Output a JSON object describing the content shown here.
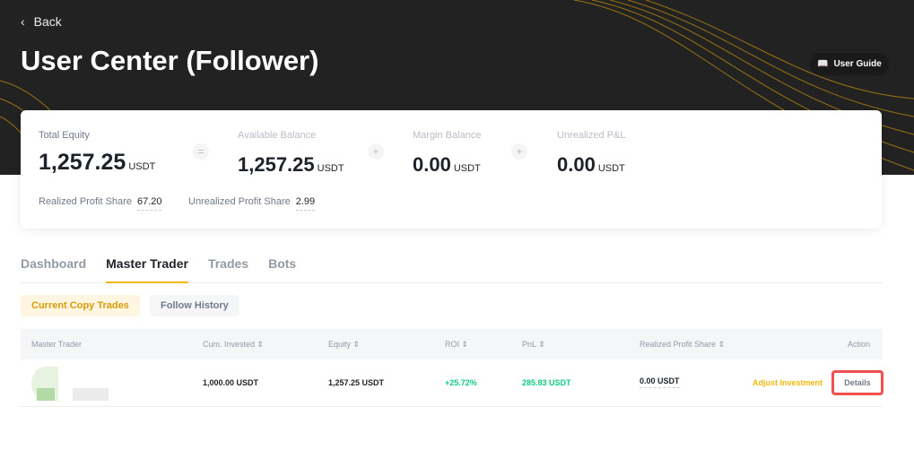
{
  "header": {
    "back_label": "Back",
    "title": "User Center (Follower)",
    "guide_label": "User Guide"
  },
  "summary": {
    "total_equity": {
      "label": "Total Equity",
      "value": "1,257.25",
      "unit": "USDT"
    },
    "available_balance": {
      "label": "Available Balance",
      "value": "1,257.25",
      "unit": "USDT"
    },
    "margin_balance": {
      "label": "Margin Balance",
      "value": "0.00",
      "unit": "USDT"
    },
    "unrealized_pnl": {
      "label": "Unrealized P&L",
      "value": "0.00",
      "unit": "USDT"
    },
    "ops": [
      "=",
      "+",
      "+"
    ],
    "realized_profit_share": {
      "label": "Realized Profit Share",
      "value": "67.20"
    },
    "unrealized_profit_share": {
      "label": "Unrealized Profit Share",
      "value": "2.99"
    }
  },
  "tabs": [
    "Dashboard",
    "Master Trader",
    "Trades",
    "Bots"
  ],
  "active_tab": "Master Trader",
  "subtabs": [
    "Current Copy Trades",
    "Follow History"
  ],
  "table": {
    "columns": [
      "Master Trader",
      "Cum. Invested",
      "Equity",
      "ROI",
      "PnL",
      "Realized Profit Share",
      "Action"
    ],
    "rows": [
      {
        "cum_invested": "1,000.00 USDT",
        "equity": "1,257.25 USDT",
        "roi": "+25.72%",
        "pnl": "285.83 USDT",
        "realized_profit_share": "0.00 USDT",
        "adjust": "Adjust Investment",
        "details": "Details"
      }
    ]
  },
  "colors": {
    "accent": "#f0b90b",
    "positive": "#0ecb81",
    "highlight": "#f0504f"
  }
}
